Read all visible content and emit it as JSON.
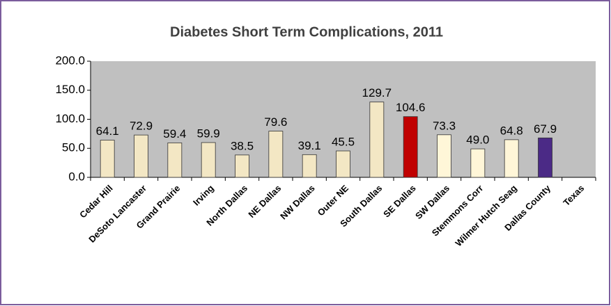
{
  "chart_data": {
    "type": "bar",
    "title": "Diabetes Short Term Complications, 2011",
    "categories": [
      "Cedar Hill",
      "DeSoto Lancaster",
      "Grand Prairie",
      "Irving",
      "North Dallas",
      "NE Dallas",
      "NW Dallas",
      "Outer NE",
      "South Dallas",
      "SE Dallas",
      "SW Dallas",
      "Stemmons Corr",
      "Wilmer Hutch Seag",
      "Dallas County",
      "Texas"
    ],
    "values": [
      64.1,
      72.9,
      59.4,
      59.9,
      38.5,
      79.6,
      39.1,
      45.5,
      129.7,
      104.6,
      73.3,
      49,
      64.8,
      67.9,
      null
    ],
    "value_labels": [
      "64.1",
      "72.9",
      "59.4",
      "59.9",
      "38.5",
      "79.6",
      "39.1",
      "45.5",
      "129.7",
      "104.6",
      "73.3",
      "49.0",
      "64.8",
      "67.9",
      null
    ],
    "colors": [
      "#f3e7c4",
      "#f3e7c4",
      "#f3e7c4",
      "#f3e7c4",
      "#f3e7c4",
      "#f3e7c4",
      "#f3e7c4",
      "#f3e7c4",
      "#f3e7c4",
      "#c00000",
      "#fff6d8",
      "#fff6d8",
      "#fff6d8",
      "#4b2a86",
      null
    ],
    "ylim": [
      0,
      200
    ],
    "yticks": [
      {
        "value": 0,
        "label": "0.0"
      },
      {
        "value": 50,
        "label": "50.0"
      },
      {
        "value": 100,
        "label": "100.0"
      },
      {
        "value": 150,
        "label": "150.0"
      },
      {
        "value": 200,
        "label": "200.0"
      }
    ],
    "grid": false
  }
}
